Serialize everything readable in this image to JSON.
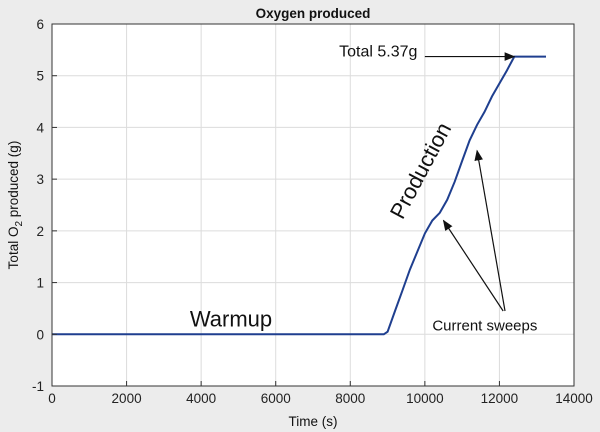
{
  "chart_data": {
    "type": "line",
    "title": "Oxygen produced",
    "xlabel": "Time (s)",
    "ylabel": {
      "pre": "Total O",
      "sub": "2",
      "post": " produced (g)"
    },
    "xlim": [
      0,
      14000
    ],
    "ylim": [
      -1,
      6
    ],
    "xticks": [
      0,
      2000,
      4000,
      6000,
      8000,
      10000,
      12000,
      14000
    ],
    "yticks": [
      -1,
      0,
      1,
      2,
      3,
      4,
      5,
      6
    ],
    "grid": true,
    "series": [
      {
        "color": "#1f3f8f",
        "x": [
          0,
          8900,
          9000,
          9200,
          9400,
          9600,
          9800,
          10000,
          10200,
          10400,
          10600,
          10800,
          11000,
          11200,
          11400,
          11600,
          11800,
          12000,
          12200,
          12400,
          12500,
          13250
        ],
        "y": [
          0,
          0,
          0.05,
          0.45,
          0.85,
          1.25,
          1.6,
          1.95,
          2.2,
          2.35,
          2.6,
          2.95,
          3.35,
          3.75,
          4.05,
          4.3,
          4.6,
          4.85,
          5.1,
          5.37,
          5.37,
          5.37
        ]
      }
    ],
    "annotations": [
      {
        "id": "warmup",
        "text": "Warmup",
        "x": 4800,
        "y": 0.15,
        "size": 22,
        "rotate": 0,
        "anchor": "middle"
      },
      {
        "id": "production",
        "text": "Production",
        "x": 9400,
        "y": 2.2,
        "size": 22,
        "rotate": -62,
        "anchor": "start"
      },
      {
        "id": "total",
        "text": "Total 5.37g",
        "x": 9800,
        "y": 5.37,
        "size": 16,
        "rotate": 0,
        "anchor": "end"
      },
      {
        "id": "current-sweeps",
        "text": "Current sweeps",
        "x": 10200,
        "y": 0.07,
        "size": 15,
        "rotate": 0,
        "anchor": "start"
      }
    ],
    "arrows": [
      {
        "id": "total-arrow",
        "from": [
          10000,
          5.37
        ],
        "to": [
          12400,
          5.37
        ]
      },
      {
        "id": "sweep-arrow-1",
        "from": [
          12100,
          0.45
        ],
        "to": [
          10500,
          2.2
        ]
      },
      {
        "id": "sweep-arrow-2",
        "from": [
          12150,
          0.45
        ],
        "to": [
          11400,
          3.55
        ]
      }
    ]
  }
}
